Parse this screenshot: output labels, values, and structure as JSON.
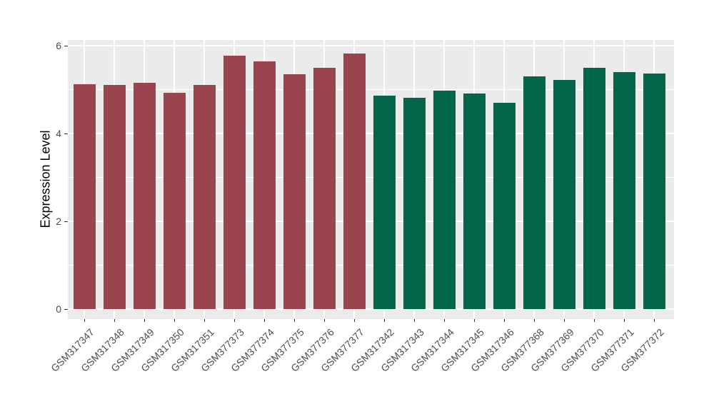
{
  "chart_data": {
    "type": "bar",
    "title": "",
    "xlabel": "",
    "ylabel": "Expression Level",
    "ylim": [
      0,
      6.15
    ],
    "yticks": [
      "0",
      "2",
      "4",
      "6"
    ],
    "ytick_values": [
      0,
      2,
      4,
      6
    ],
    "minor_gridline_values": [
      1,
      3,
      5
    ],
    "grid": true,
    "legend_position": "none",
    "categories": [
      "GSM317347",
      "GSM317348",
      "GSM317349",
      "GSM317350",
      "GSM317351",
      "GSM377373",
      "GSM377374",
      "GSM377375",
      "GSM377376",
      "GSM377377",
      "GSM317342",
      "GSM317343",
      "GSM317344",
      "GSM317345",
      "GSM317346",
      "GSM377368",
      "GSM377369",
      "GSM377370",
      "GSM377371",
      "GSM377372"
    ],
    "values": [
      5.13,
      5.11,
      5.16,
      4.93,
      5.1,
      5.77,
      5.65,
      5.35,
      5.49,
      5.82,
      4.86,
      4.82,
      4.97,
      4.91,
      4.7,
      5.3,
      5.22,
      5.5,
      5.4,
      5.36
    ],
    "bar_groups": [
      "maroon",
      "maroon",
      "maroon",
      "maroon",
      "maroon",
      "maroon",
      "maroon",
      "maroon",
      "maroon",
      "maroon",
      "green",
      "green",
      "green",
      "green",
      "green",
      "green",
      "green",
      "green",
      "green",
      "green"
    ],
    "group_colors": {
      "maroon": "#9A4450",
      "green": "#01664A"
    }
  },
  "style": {
    "figure_background": "#FFFFFF",
    "panel_background": "#EBEBEB",
    "gridline_color": "#FFFFFF",
    "tick_label_color": "#4D4D4D",
    "axis_title_color": "#000000",
    "tick_mark_color": "#333333"
  }
}
